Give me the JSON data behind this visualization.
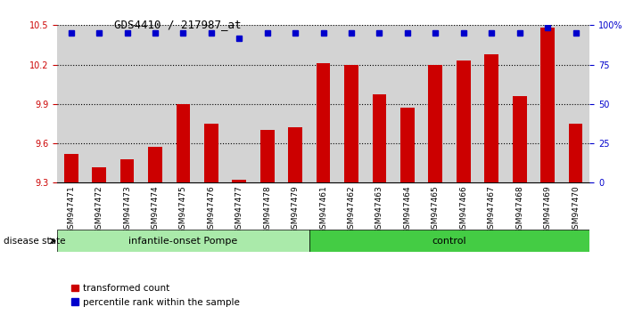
{
  "title": "GDS4410 / 217987_at",
  "categories": [
    "GSM947471",
    "GSM947472",
    "GSM947473",
    "GSM947474",
    "GSM947475",
    "GSM947476",
    "GSM947477",
    "GSM947478",
    "GSM947479",
    "GSM947461",
    "GSM947462",
    "GSM947463",
    "GSM947464",
    "GSM947465",
    "GSM947466",
    "GSM947467",
    "GSM947468",
    "GSM947469",
    "GSM947470"
  ],
  "bar_values": [
    9.52,
    9.42,
    9.48,
    9.57,
    9.9,
    9.75,
    9.32,
    9.7,
    9.72,
    10.21,
    10.2,
    9.97,
    9.87,
    10.2,
    10.23,
    10.28,
    9.96,
    10.48,
    9.75
  ],
  "blue_dot_y": [
    10.44,
    10.44,
    10.44,
    10.44,
    10.44,
    10.44,
    10.4,
    10.44,
    10.44,
    10.44,
    10.44,
    10.44,
    10.44,
    10.44,
    10.44,
    10.44,
    10.44,
    10.48,
    10.44
  ],
  "group1_label": "infantile-onset Pompe",
  "group1_count": 9,
  "group2_label": "control",
  "group2_count": 10,
  "disease_state_label": "disease state",
  "bar_color": "#cc0000",
  "dot_color": "#0000cc",
  "ylim_left": [
    9.3,
    10.5
  ],
  "yticks_left": [
    9.3,
    9.6,
    9.9,
    10.2,
    10.5
  ],
  "ylim_right": [
    0,
    100
  ],
  "yticks_right": [
    0,
    25,
    50,
    75,
    100
  ],
  "ytick_labels_right": [
    "0",
    "25",
    "50",
    "75",
    "100%"
  ],
  "bg_color": "#ffffff",
  "bar_bg_color": "#d3d3d3",
  "group1_bg": "#aaeaaa",
  "group2_bg": "#44cc44",
  "legend_items": [
    {
      "label": "transformed count",
      "color": "#cc0000"
    },
    {
      "label": "percentile rank within the sample",
      "color": "#0000cc"
    }
  ]
}
